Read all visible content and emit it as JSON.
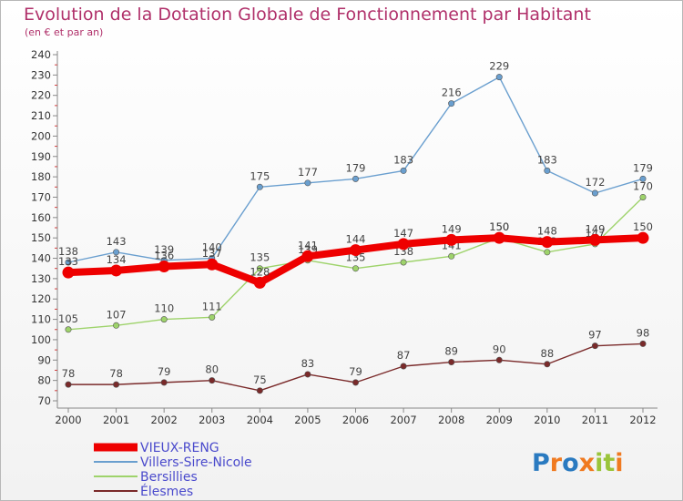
{
  "chart_data": {
    "type": "line",
    "title": "Evolution de la Dotation Globale de Fonctionnement par Habitant",
    "subtitle": "(en € et par an)",
    "x": [
      "2000",
      "2001",
      "2002",
      "2003",
      "2004",
      "2005",
      "2006",
      "2007",
      "2008",
      "2009",
      "2010",
      "2011",
      "2012"
    ],
    "ylim": [
      70,
      240
    ],
    "yticks": [
      70,
      80,
      90,
      100,
      110,
      120,
      130,
      140,
      150,
      160,
      170,
      180,
      190,
      200,
      210,
      220,
      230,
      240
    ],
    "grid": false,
    "legend_position": "bottom-left",
    "series": [
      {
        "name": "VIEUX-RENG",
        "color": "#ee0000",
        "values": [
          133,
          134,
          136,
          137,
          128,
          141,
          144,
          147,
          149,
          150,
          148,
          149,
          150
        ]
      },
      {
        "name": "Villers-Sire-Nicole",
        "color": "#6a9fcf",
        "values": [
          138,
          143,
          139,
          140,
          175,
          177,
          179,
          183,
          216,
          229,
          183,
          172,
          179
        ]
      },
      {
        "name": "Bersillies",
        "color": "#9ed36b",
        "values": [
          105,
          107,
          110,
          111,
          135,
          139,
          135,
          138,
          141,
          150,
          143,
          147,
          170
        ]
      },
      {
        "name": "Élesmes",
        "color": "#7a2a2a",
        "values": [
          78,
          78,
          79,
          80,
          75,
          83,
          79,
          87,
          89,
          90,
          88,
          97,
          98
        ]
      }
    ]
  },
  "logo": {
    "text": "Proxiti",
    "colors": [
      "#2a7ac0",
      "#f07a20",
      "#2a7ac0",
      "#f07a20",
      "#9ac43a",
      "#9ac43a",
      "#f07a20"
    ]
  }
}
